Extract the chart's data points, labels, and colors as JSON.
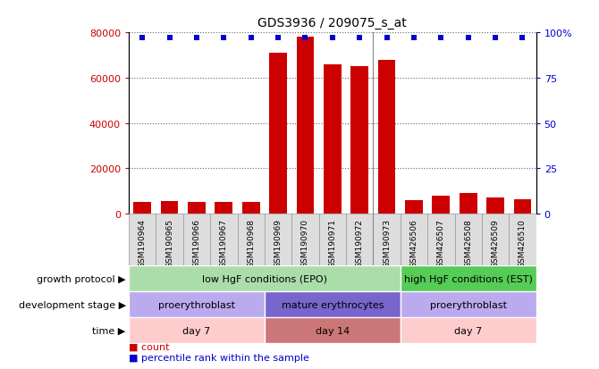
{
  "title": "GDS3936 / 209075_s_at",
  "samples": [
    "GSM190964",
    "GSM190965",
    "GSM190966",
    "GSM190967",
    "GSM190968",
    "GSM190969",
    "GSM190970",
    "GSM190971",
    "GSM190972",
    "GSM190973",
    "GSM426506",
    "GSM426507",
    "GSM426508",
    "GSM426509",
    "GSM426510"
  ],
  "counts": [
    5000,
    5500,
    5200,
    5300,
    5100,
    71000,
    78000,
    66000,
    65000,
    68000,
    6000,
    8000,
    9000,
    7000,
    6500
  ],
  "percentile_values": [
    97,
    97,
    97,
    97,
    97,
    97,
    97,
    97,
    97,
    97,
    97,
    97,
    97,
    97,
    97
  ],
  "bar_color": "#cc0000",
  "dot_color": "#0000cc",
  "ylim_left": [
    0,
    80000
  ],
  "ylim_right": [
    0,
    100
  ],
  "yticks_left": [
    0,
    20000,
    40000,
    60000,
    80000
  ],
  "ytick_labels_left": [
    "0",
    "20000",
    "40000",
    "60000",
    "80000"
  ],
  "yticks_right": [
    0,
    25,
    50,
    75,
    100
  ],
  "ytick_labels_right": [
    "0",
    "25",
    "50",
    "75",
    "100%"
  ],
  "growth_protocol_spans": [
    {
      "label": "low HgF conditions (EPO)",
      "start": 0,
      "end": 10,
      "color": "#aaddaa"
    },
    {
      "label": "high HgF conditions (EST)",
      "start": 10,
      "end": 15,
      "color": "#55cc55"
    }
  ],
  "development_stage_spans": [
    {
      "label": "proerythroblast",
      "start": 0,
      "end": 5,
      "color": "#bbaaee"
    },
    {
      "label": "mature erythrocytes",
      "start": 5,
      "end": 10,
      "color": "#7766cc"
    },
    {
      "label": "proerythroblast",
      "start": 10,
      "end": 15,
      "color": "#bbaaee"
    }
  ],
  "time_spans": [
    {
      "label": "day 7",
      "start": 0,
      "end": 5,
      "color": "#ffcccc"
    },
    {
      "label": "day 14",
      "start": 5,
      "end": 10,
      "color": "#cc7777"
    },
    {
      "label": "day 7",
      "start": 10,
      "end": 15,
      "color": "#ffcccc"
    }
  ],
  "row_labels": [
    "growth protocol",
    "development stage",
    "time"
  ],
  "legend_count_color": "#cc0000",
  "legend_dot_color": "#0000cc",
  "bg_color": "#ffffff",
  "axis_label_color_left": "#cc0000",
  "axis_label_color_right": "#0000cc",
  "separator_after_index": 9,
  "xtick_bg_color": "#dddddd",
  "xtick_border_color": "#999999"
}
